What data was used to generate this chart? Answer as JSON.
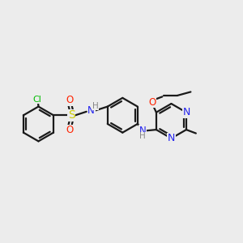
{
  "background_color": "#ececec",
  "bond_color": "#1a1a1a",
  "atom_colors": {
    "Cl": "#00bb00",
    "S": "#cccc00",
    "O": "#ff2200",
    "N": "#2222ee",
    "H": "#888888",
    "C": "#1a1a1a"
  },
  "figsize": [
    3.0,
    3.0
  ],
  "dpi": 100,
  "xlim": [
    0,
    10
  ],
  "ylim": [
    0,
    10
  ]
}
